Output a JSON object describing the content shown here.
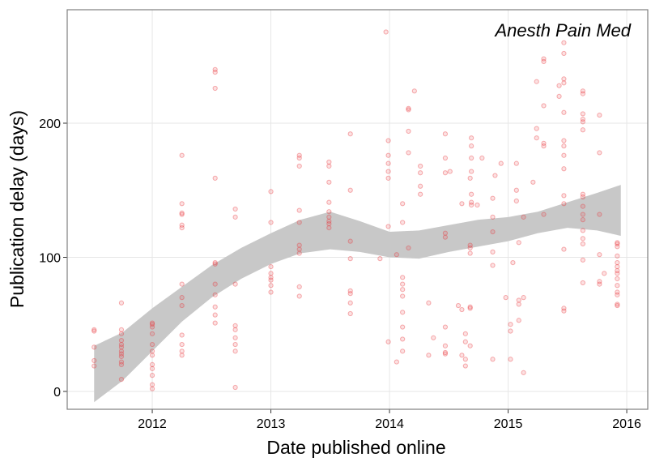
{
  "chart_data": {
    "type": "scatter",
    "annotation": "Anesth Pain Med",
    "x_label": "Date published online",
    "y_label": "Publication delay (days)",
    "xlim": [
      2011.283,
      2016.177
    ],
    "xticks": [
      2012,
      2013,
      2014,
      2015,
      2016
    ],
    "ylim": [
      -13.3,
      284.6
    ],
    "yticks": [
      0,
      100,
      200
    ],
    "grid": true,
    "series": [
      {
        "color": "#e8383b",
        "x": [
          2011.51,
          2011.51,
          2011.51,
          2011.51,
          2011.51,
          2011.74,
          2011.74,
          2011.74,
          2011.74,
          2011.74,
          2011.74,
          2011.74,
          2011.74,
          2011.74,
          2011.74,
          2011.74,
          2011.74,
          2012,
          2012,
          2012,
          2012,
          2012,
          2012,
          2012,
          2012,
          2012,
          2012,
          2012,
          2012,
          2012.25,
          2012.25,
          2012.25,
          2012.25,
          2012.25,
          2012.25,
          2012.25,
          2012.25,
          2012.25,
          2012.25,
          2012.25,
          2012.25,
          2012.25,
          2012.53,
          2012.53,
          2012.53,
          2012.53,
          2012.53,
          2012.53,
          2012.53,
          2012.53,
          2012.53,
          2012.53,
          2012.53,
          2012.7,
          2012.7,
          2012.7,
          2012.7,
          2012.7,
          2012.7,
          2012.7,
          2012.7,
          2012.7,
          2013,
          2013,
          2013,
          2013,
          2013,
          2013,
          2013,
          2013,
          2013.24,
          2013.24,
          2013.24,
          2013.24,
          2013.24,
          2013.24,
          2013.24,
          2013.24,
          2013.24,
          2013.24,
          2013.49,
          2013.49,
          2013.49,
          2013.49,
          2013.49,
          2013.49,
          2013.49,
          2013.49,
          2013.49,
          2013.67,
          2013.67,
          2013.67,
          2013.67,
          2013.67,
          2013.67,
          2013.67,
          2013.67,
          2013.92,
          2013.97,
          2013.99,
          2013.99,
          2013.99,
          2013.99,
          2013.99,
          2013.99,
          2013.99,
          2014.06,
          2014.06,
          2014.11,
          2014.11,
          2014.11,
          2014.11,
          2014.11,
          2014.11,
          2014.11,
          2014.11,
          2014.11,
          2014.11,
          2014.16,
          2014.16,
          2014.16,
          2014.16,
          2014.16,
          2014.21,
          2014.26,
          2014.26,
          2014.26,
          2014.26,
          2014.33,
          2014.33,
          2014.37,
          2014.47,
          2014.47,
          2014.47,
          2014.47,
          2014.47,
          2014.47,
          2014.47,
          2014.47,
          2014.47,
          2014.51,
          2014.58,
          2014.61,
          2014.61,
          2014.61,
          2014.64,
          2014.64,
          2014.64,
          2014.64,
          2014.68,
          2014.68,
          2014.68,
          2014.68,
          2014.68,
          2014.68,
          2014.68,
          2014.69,
          2014.69,
          2014.69,
          2014.69,
          2014.69,
          2014.69,
          2014.69,
          2014.74,
          2014.78,
          2014.87,
          2014.87,
          2014.87,
          2014.87,
          2014.87,
          2014.87,
          2014.89,
          2014.94,
          2014.98,
          2015.02,
          2015.02,
          2015.02,
          2015.04,
          2015.07,
          2015.07,
          2015.07,
          2015.09,
          2015.09,
          2015.09,
          2015.09,
          2015.13,
          2015.13,
          2015.13,
          2015.21,
          2015.24,
          2015.24,
          2015.24,
          2015.3,
          2015.3,
          2015.3,
          2015.3,
          2015.3,
          2015.3,
          2015.43,
          2015.43,
          2015.47,
          2015.47,
          2015.47,
          2015.47,
          2015.47,
          2015.47,
          2015.47,
          2015.47,
          2015.47,
          2015.47,
          2015.47,
          2015.47,
          2015.47,
          2015.47,
          2015.63,
          2015.63,
          2015.63,
          2015.63,
          2015.63,
          2015.63,
          2015.63,
          2015.63,
          2015.63,
          2015.63,
          2015.63,
          2015.63,
          2015.63,
          2015.63,
          2015.63,
          2015.63,
          2015.77,
          2015.77,
          2015.77,
          2015.77,
          2015.77,
          2015.77,
          2015.81,
          2015.92,
          2015.92,
          2015.92,
          2015.92,
          2015.92,
          2015.92,
          2015.92,
          2015.92,
          2015.92,
          2015.92,
          2015.92,
          2015.92,
          2015.92,
          2015.92
        ],
        "values": [
          46,
          45,
          33,
          23,
          19,
          66,
          46,
          43,
          38,
          35,
          33,
          30,
          28,
          26,
          22,
          20,
          9,
          51,
          50,
          48,
          43,
          35,
          30,
          27,
          20,
          17,
          12,
          5,
          2,
          176,
          140,
          133,
          132,
          124,
          122,
          80,
          70,
          64,
          42,
          35,
          30,
          27,
          240,
          238,
          226,
          159,
          96,
          95,
          80,
          72,
          63,
          57,
          51,
          136,
          130,
          80,
          49,
          46,
          40,
          35,
          30,
          3,
          149,
          126,
          93,
          88,
          85,
          83,
          79,
          74,
          176,
          174,
          168,
          135,
          126,
          109,
          106,
          103,
          78,
          71,
          171,
          168,
          156,
          141,
          134,
          130,
          127,
          125,
          122,
          192,
          150,
          112,
          99,
          75,
          73,
          66,
          58,
          99,
          268,
          187,
          176,
          170,
          164,
          159,
          123,
          37,
          102,
          22,
          140,
          126,
          85,
          80,
          76,
          71,
          59,
          48,
          39,
          30,
          211,
          210,
          194,
          178,
          107,
          224,
          168,
          163,
          153,
          147,
          66,
          27,
          40,
          192,
          174,
          163,
          118,
          115,
          48,
          34,
          29,
          28,
          164,
          64,
          140,
          61,
          27,
          43,
          37,
          24,
          19,
          159,
          109,
          107,
          103,
          63,
          62,
          34,
          189,
          183,
          174,
          164,
          147,
          141,
          139,
          139,
          174,
          144,
          130,
          119,
          104,
          94,
          24,
          161,
          170,
          70,
          50,
          45,
          24,
          96,
          170,
          150,
          142,
          111,
          68,
          65,
          53,
          130,
          70,
          14,
          156,
          231,
          196,
          189,
          248,
          246,
          213,
          185,
          183,
          132,
          228,
          220,
          260,
          252,
          233,
          230,
          208,
          187,
          183,
          176,
          166,
          146,
          140,
          106,
          62,
          60,
          224,
          222,
          207,
          203,
          201,
          195,
          147,
          145,
          138,
          132,
          128,
          120,
          114,
          110,
          98,
          81,
          206,
          178,
          132,
          102,
          82,
          80,
          88,
          111,
          110,
          108,
          101,
          96,
          93,
          90,
          88,
          84,
          79,
          74,
          72,
          65,
          64
        ]
      }
    ],
    "band": {
      "color": "#c8c8c8",
      "x": [
        2011.51,
        2011.75,
        2012.0,
        2012.25,
        2012.5,
        2012.75,
        2013.0,
        2013.25,
        2013.5,
        2013.75,
        2014.0,
        2014.25,
        2014.5,
        2014.75,
        2015.0,
        2015.25,
        2015.5,
        2015.75,
        2015.95
      ],
      "lower": [
        -8,
        8,
        30,
        52,
        70,
        84,
        95,
        103,
        106,
        104,
        100,
        99,
        104,
        108,
        112,
        118,
        122,
        120,
        116
      ],
      "upper": [
        34,
        44,
        62,
        78,
        94,
        107,
        118,
        128,
        134,
        127,
        119,
        120,
        124,
        128,
        130,
        134,
        141,
        148,
        154
      ]
    }
  }
}
